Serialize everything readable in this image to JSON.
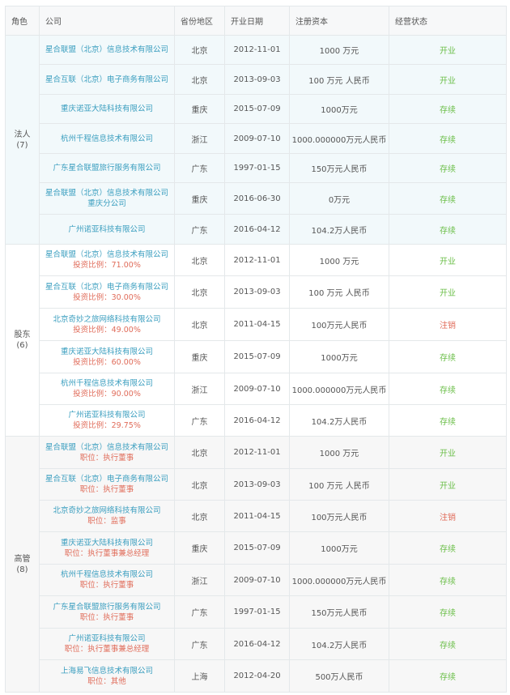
{
  "table": {
    "headers": {
      "role": "角色",
      "company": "公司",
      "province": "省份地区",
      "date": "开业日期",
      "capital": "注册资本",
      "status": "经营状态"
    },
    "colors": {
      "link": "#3a9ebf",
      "sub_text": "#e06c5a",
      "status_active": "#6cbf4a",
      "status_cancelled": "#e06c5a",
      "section_bg_1": "#f2f9fb",
      "section_bg_2": "#ffffff",
      "section_bg_3": "#f7f7f7"
    },
    "sections": [
      {
        "role": "法人",
        "count": "(7)",
        "rows": [
          {
            "company": "星合联盟（北京）信息技术有限公司",
            "sub": "",
            "province": "北京",
            "date": "2012-11-01",
            "capital": "1000 万元",
            "status": "开业",
            "status_type": "open"
          },
          {
            "company": "星合互联（北京）电子商务有限公司",
            "sub": "",
            "province": "北京",
            "date": "2013-09-03",
            "capital": "100 万元 人民币",
            "status": "开业",
            "status_type": "open"
          },
          {
            "company": "重庆诺亚大陆科技有限公司",
            "sub": "",
            "province": "重庆",
            "date": "2015-07-09",
            "capital": "1000万元",
            "status": "存续",
            "status_type": "exist"
          },
          {
            "company": "杭州千程信息技术有限公司",
            "sub": "",
            "province": "浙江",
            "date": "2009-07-10",
            "capital": "1000.000000万元人民币",
            "status": "存续",
            "status_type": "exist"
          },
          {
            "company": "广东星合联盟旅行服务有限公司",
            "sub": "",
            "province": "广东",
            "date": "1997-01-15",
            "capital": "150万元人民币",
            "status": "存续",
            "status_type": "exist"
          },
          {
            "company": "星合联盟（北京）信息技术有限公司",
            "sub": "重庆分公司",
            "sub_is_link": true,
            "province": "重庆",
            "date": "2016-06-30",
            "capital": "0万元",
            "status": "存续",
            "status_type": "exist"
          },
          {
            "company": "广州诺亚科技有限公司",
            "sub": "",
            "province": "广东",
            "date": "2016-04-12",
            "capital": "104.2万人民币",
            "status": "存续",
            "status_type": "exist"
          }
        ]
      },
      {
        "role": "股东",
        "count": "(6)",
        "rows": [
          {
            "company": "星合联盟（北京）信息技术有限公司",
            "sub": "投资比例：71.00%",
            "province": "北京",
            "date": "2012-11-01",
            "capital": "1000 万元",
            "status": "开业",
            "status_type": "open"
          },
          {
            "company": "星合互联（北京）电子商务有限公司",
            "sub": "投资比例：30.00%",
            "province": "北京",
            "date": "2013-09-03",
            "capital": "100 万元 人民币",
            "status": "开业",
            "status_type": "open"
          },
          {
            "company": "北京奇妙之旅网络科技有限公司",
            "sub": "投资比例：49.00%",
            "province": "北京",
            "date": "2011-04-15",
            "capital": "100万元人民币",
            "status": "注销",
            "status_type": "cancel"
          },
          {
            "company": "重庆诺亚大陆科技有限公司",
            "sub": "投资比例：60.00%",
            "province": "重庆",
            "date": "2015-07-09",
            "capital": "1000万元",
            "status": "存续",
            "status_type": "exist"
          },
          {
            "company": "杭州千程信息技术有限公司",
            "sub": "投资比例：90.00%",
            "province": "浙江",
            "date": "2009-07-10",
            "capital": "1000.000000万元人民币",
            "status": "存续",
            "status_type": "exist"
          },
          {
            "company": "广州诺亚科技有限公司",
            "sub": "投资比例：29.75%",
            "province": "广东",
            "date": "2016-04-12",
            "capital": "104.2万人民币",
            "status": "存续",
            "status_type": "exist"
          }
        ]
      },
      {
        "role": "高管",
        "count": "(8)",
        "rows": [
          {
            "company": "星合联盟（北京）信息技术有限公司",
            "sub": "职位：执行董事",
            "province": "北京",
            "date": "2012-11-01",
            "capital": "1000 万元",
            "status": "开业",
            "status_type": "open"
          },
          {
            "company": "星合互联（北京）电子商务有限公司",
            "sub": "职位：执行董事",
            "province": "北京",
            "date": "2013-09-03",
            "capital": "100 万元 人民币",
            "status": "开业",
            "status_type": "open"
          },
          {
            "company": "北京奇妙之旅网络科技有限公司",
            "sub": "职位：监事",
            "province": "北京",
            "date": "2011-04-15",
            "capital": "100万元人民币",
            "status": "注销",
            "status_type": "cancel"
          },
          {
            "company": "重庆诺亚大陆科技有限公司",
            "sub": "职位：执行董事兼总经理",
            "province": "重庆",
            "date": "2015-07-09",
            "capital": "1000万元",
            "status": "存续",
            "status_type": "exist"
          },
          {
            "company": "杭州千程信息技术有限公司",
            "sub": "职位：执行董事",
            "province": "浙江",
            "date": "2009-07-10",
            "capital": "1000.000000万元人民币",
            "status": "存续",
            "status_type": "exist"
          },
          {
            "company": "广东星合联盟旅行服务有限公司",
            "sub": "职位：执行董事",
            "province": "广东",
            "date": "1997-01-15",
            "capital": "150万元人民币",
            "status": "存续",
            "status_type": "exist"
          },
          {
            "company": "广州诺亚科技有限公司",
            "sub": "职位：执行董事兼总经理",
            "province": "广东",
            "date": "2016-04-12",
            "capital": "104.2万人民币",
            "status": "存续",
            "status_type": "exist"
          },
          {
            "company": "上海易飞信息技术有限公司",
            "sub": "职位：其他",
            "province": "上海",
            "date": "2012-04-20",
            "capital": "500万人民币",
            "status": "存续",
            "status_type": "exist"
          }
        ]
      }
    ]
  }
}
